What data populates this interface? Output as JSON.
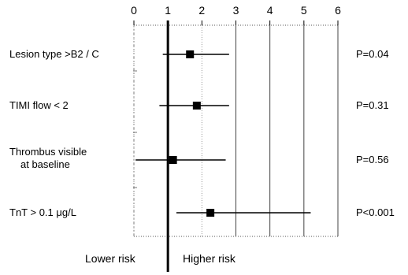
{
  "chart_data": {
    "type": "forest",
    "x_ticks": [
      "0",
      "1",
      "2",
      "3",
      "4",
      "5",
      "6"
    ],
    "xlim": [
      0,
      6
    ],
    "reference_line": 1,
    "rows": [
      {
        "label_lines": [
          "Lesion type >B2 / C"
        ],
        "estimate": 1.65,
        "ci_low": 0.85,
        "ci_high": 2.8,
        "p_value": "P=0.04"
      },
      {
        "label_lines": [
          "TIMI flow < 2"
        ],
        "estimate": 1.85,
        "ci_low": 0.75,
        "ci_high": 2.8,
        "p_value": "P=0.31"
      },
      {
        "label_lines": [
          "Thrombus visible",
          "at baseline"
        ],
        "estimate": 1.15,
        "ci_low": 0.05,
        "ci_high": 2.7,
        "p_value": "P=0.56"
      },
      {
        "label_lines": [
          "TnT > 0.1 μg/L"
        ],
        "estimate": 2.25,
        "ci_low": 1.25,
        "ci_high": 5.2,
        "p_value": "P<0.001"
      }
    ],
    "below_left": "Lower risk",
    "below_right": "Higher risk",
    "grid": true
  }
}
